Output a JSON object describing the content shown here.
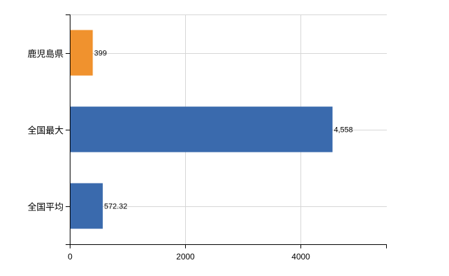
{
  "chart_data": {
    "type": "bar",
    "orientation": "horizontal",
    "categories": [
      "鹿児島県",
      "全国最大",
      "全国平均"
    ],
    "values": [
      399,
      4558,
      572.32
    ],
    "value_labels": [
      "399",
      "4,558",
      "572.32"
    ],
    "bar_colors": [
      "#f0922e",
      "#3a6aad",
      "#3a6aad"
    ],
    "xlim": [
      0,
      5500
    ],
    "x_ticks": [
      0,
      2000,
      4000
    ],
    "x_tick_labels": [
      "0",
      "2000",
      "4000"
    ],
    "grid": true,
    "legend": "none",
    "title": "",
    "xlabel": "",
    "ylabel": ""
  }
}
